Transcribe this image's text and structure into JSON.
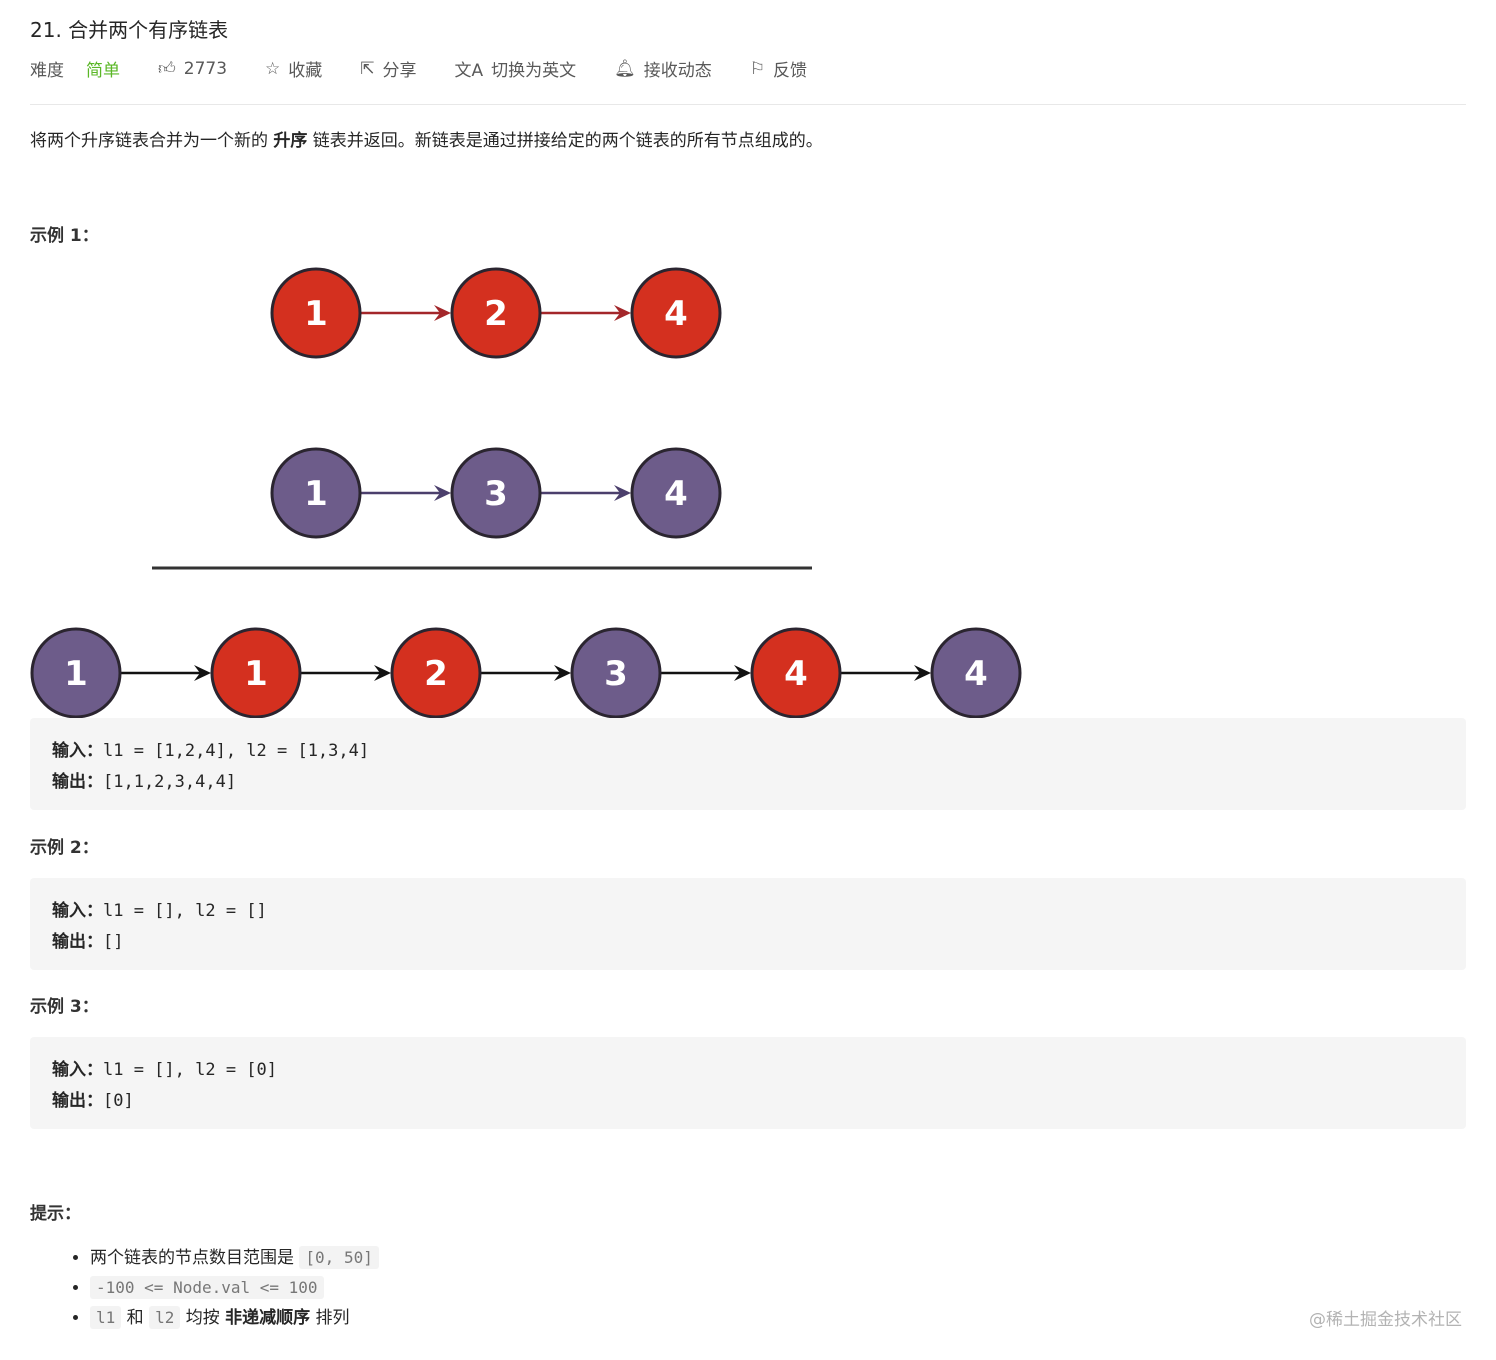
{
  "header": {
    "title": "21. 合并两个有序链表",
    "difficulty_label": "难度",
    "difficulty": "简单",
    "likes": "2773",
    "favorite": "收藏",
    "share": "分享",
    "switch_lang": "切换为英文",
    "subscribe": "接收动态",
    "feedback": "反馈"
  },
  "description": {
    "pre": "将两个升序链表合并为一个新的 ",
    "bold": "升序",
    "post": " 链表并返回。新链表是通过拼接给定的两个链表的所有节点组成的。"
  },
  "examples": [
    {
      "title": "示例 1：",
      "input_label": "输入：",
      "input": "l1 = [1,2,4], l2 = [1,3,4]",
      "output_label": "输出：",
      "output": "[1,1,2,3,4,4]"
    },
    {
      "title": "示例 2：",
      "input_label": "输入：",
      "input": "l1 = [], l2 = []",
      "output_label": "输出：",
      "output": "[]"
    },
    {
      "title": "示例 3：",
      "input_label": "输入：",
      "input": "l1 = [], l2 = [0]",
      "output_label": "输出：",
      "output": "[0]"
    }
  ],
  "diagram": {
    "colors": {
      "l1": "#d4301f",
      "l2": "#6d5c8a",
      "l1_arrow": "#a3262a",
      "l2_arrow": "#4b3f6c",
      "merged_arrow": "#111111"
    },
    "l1": [
      1,
      2,
      4
    ],
    "l2": [
      1,
      3,
      4
    ],
    "merged": [
      {
        "v": 1,
        "list": "l2"
      },
      {
        "v": 1,
        "list": "l1"
      },
      {
        "v": 2,
        "list": "l1"
      },
      {
        "v": 3,
        "list": "l2"
      },
      {
        "v": 4,
        "list": "l1"
      },
      {
        "v": 4,
        "list": "l2"
      }
    ]
  },
  "hints": {
    "title": "提示：",
    "items": [
      {
        "text": "两个链表的节点数目范围是 ",
        "code": "[0, 50]"
      },
      {
        "code": "-100 <= Node.val <= 100"
      },
      {
        "code1": "l1",
        "and": " 和 ",
        "code2": "l2",
        "mid": " 均按 ",
        "bold": "非递减顺序",
        "end": " 排列"
      }
    ]
  },
  "watermark": "@稀土掘金技术社区"
}
